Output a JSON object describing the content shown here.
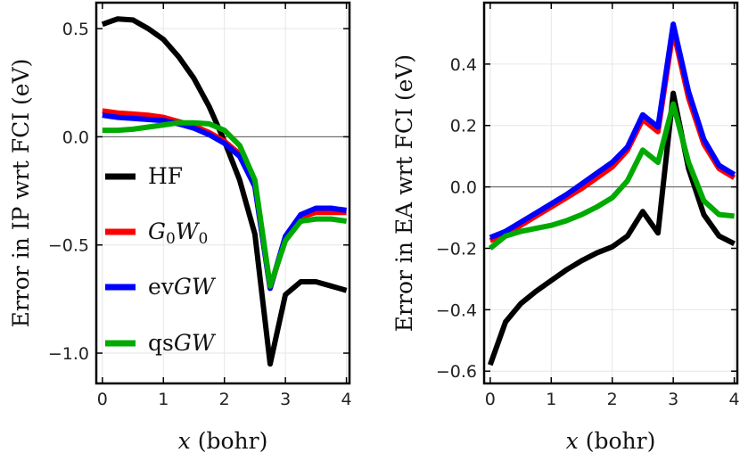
{
  "chart_data": [
    {
      "type": "line",
      "xlabel": "x (bohr)",
      "ylabel": "Error in IP wrt FCI (eV)",
      "xlim": [
        -0.1,
        4.05
      ],
      "ylim": [
        -1.14,
        0.62
      ],
      "xticks": [
        0,
        1,
        2,
        3,
        4
      ],
      "yticks": [
        0.5,
        0.0,
        -0.5,
        -1.0
      ],
      "ytick_labels": [
        "0.5",
        "0.0",
        "−0.5",
        "−1.0"
      ],
      "grid": true,
      "legend": {
        "placement": "center-left",
        "entries": [
          {
            "name": "HF",
            "color": "#000000"
          },
          {
            "name": "G0W0",
            "color": "#ff0000",
            "italic_parts": [
              [
                "G",
                "0"
              ],
              [
                "W",
                "0"
              ]
            ]
          },
          {
            "name": "evGW",
            "color": "#0000ff"
          },
          {
            "name": "qsGW",
            "color": "#00aa00"
          }
        ]
      },
      "series": [
        {
          "name": "HF",
          "color": "#000000",
          "x": [
            0,
            0.25,
            0.5,
            0.75,
            1.0,
            1.25,
            1.5,
            1.75,
            2.0,
            2.25,
            2.5,
            2.75,
            3.0,
            3.25,
            3.5,
            3.75,
            4.0
          ],
          "y": [
            0.52,
            0.545,
            0.54,
            0.5,
            0.45,
            0.37,
            0.27,
            0.14,
            -0.02,
            -0.2,
            -0.45,
            -1.05,
            -0.73,
            -0.67,
            -0.67,
            -0.69,
            -0.71
          ]
        },
        {
          "name": "G0W0",
          "color": "#ff0000",
          "x": [
            0,
            0.25,
            0.5,
            0.75,
            1.0,
            1.25,
            1.5,
            1.75,
            2.0,
            2.25,
            2.5,
            2.75,
            3.0,
            3.25,
            3.5,
            3.75,
            4.0
          ],
          "y": [
            0.12,
            0.11,
            0.105,
            0.1,
            0.09,
            0.07,
            0.05,
            0.02,
            -0.02,
            -0.08,
            -0.23,
            -0.7,
            -0.47,
            -0.37,
            -0.35,
            -0.35,
            -0.35
          ]
        },
        {
          "name": "evGW",
          "color": "#0000ff",
          "x": [
            0,
            0.25,
            0.5,
            0.75,
            1.0,
            1.25,
            1.5,
            1.75,
            2.0,
            2.25,
            2.5,
            2.75,
            3.0,
            3.25,
            3.5,
            3.75,
            4.0
          ],
          "y": [
            0.1,
            0.09,
            0.085,
            0.08,
            0.075,
            0.06,
            0.04,
            0.01,
            -0.03,
            -0.09,
            -0.23,
            -0.7,
            -0.46,
            -0.36,
            -0.33,
            -0.33,
            -0.34
          ]
        },
        {
          "name": "qsGW",
          "color": "#00aa00",
          "x": [
            0,
            0.25,
            0.5,
            0.75,
            1.0,
            1.25,
            1.5,
            1.75,
            2.0,
            2.25,
            2.5,
            2.75,
            3.0,
            3.25,
            3.5,
            3.75,
            4.0
          ],
          "y": [
            0.03,
            0.03,
            0.035,
            0.045,
            0.055,
            0.065,
            0.065,
            0.06,
            0.03,
            -0.04,
            -0.2,
            -0.69,
            -0.48,
            -0.39,
            -0.38,
            -0.38,
            -0.39
          ]
        }
      ]
    },
    {
      "type": "line",
      "xlabel": "x (bohr)",
      "ylabel": "Error in EA wrt FCI (eV)",
      "xlim": [
        -0.1,
        4.05
      ],
      "ylim": [
        -0.64,
        0.6
      ],
      "xticks": [
        0,
        1,
        2,
        3,
        4
      ],
      "yticks": [
        0.4,
        0.2,
        0.0,
        -0.2,
        -0.4,
        -0.6
      ],
      "ytick_labels": [
        "0.4",
        "0.2",
        "0.0",
        "−0.2",
        "−0.4",
        "−0.6"
      ],
      "grid": true,
      "series": [
        {
          "name": "HF",
          "color": "#000000",
          "x": [
            0,
            0.25,
            0.5,
            0.75,
            1.0,
            1.25,
            1.5,
            1.75,
            2.0,
            2.25,
            2.5,
            2.75,
            3.0,
            3.25,
            3.5,
            3.75,
            4.0
          ],
          "y": [
            -0.58,
            -0.44,
            -0.38,
            -0.34,
            -0.305,
            -0.27,
            -0.24,
            -0.215,
            -0.195,
            -0.16,
            -0.08,
            -0.15,
            0.305,
            0.06,
            -0.09,
            -0.16,
            -0.185
          ]
        },
        {
          "name": "G0W0",
          "color": "#ff0000",
          "x": [
            0,
            0.25,
            0.5,
            0.75,
            1.0,
            1.25,
            1.5,
            1.75,
            2.0,
            2.25,
            2.5,
            2.75,
            3.0,
            3.25,
            3.5,
            3.75,
            4.0
          ],
          "y": [
            -0.175,
            -0.155,
            -0.125,
            -0.095,
            -0.065,
            -0.035,
            -0.005,
            0.03,
            0.065,
            0.12,
            0.22,
            0.18,
            0.51,
            0.29,
            0.14,
            0.06,
            0.03
          ]
        },
        {
          "name": "evGW",
          "color": "#0000ff",
          "x": [
            0,
            0.25,
            0.5,
            0.75,
            1.0,
            1.25,
            1.5,
            1.75,
            2.0,
            2.25,
            2.5,
            2.75,
            3.0,
            3.25,
            3.5,
            3.75,
            4.0
          ],
          "y": [
            -0.165,
            -0.145,
            -0.115,
            -0.085,
            -0.055,
            -0.025,
            0.01,
            0.045,
            0.08,
            0.13,
            0.235,
            0.195,
            0.53,
            0.31,
            0.155,
            0.07,
            0.04
          ]
        },
        {
          "name": "qsGW",
          "color": "#00aa00",
          "x": [
            0,
            0.25,
            0.5,
            0.75,
            1.0,
            1.25,
            1.5,
            1.75,
            2.0,
            2.25,
            2.5,
            2.75,
            3.0,
            3.25,
            3.5,
            3.75,
            4.0
          ],
          "y": [
            -0.2,
            -0.16,
            -0.145,
            -0.135,
            -0.125,
            -0.11,
            -0.09,
            -0.065,
            -0.035,
            0.02,
            0.12,
            0.08,
            0.27,
            0.08,
            -0.045,
            -0.09,
            -0.095
          ]
        }
      ]
    }
  ]
}
